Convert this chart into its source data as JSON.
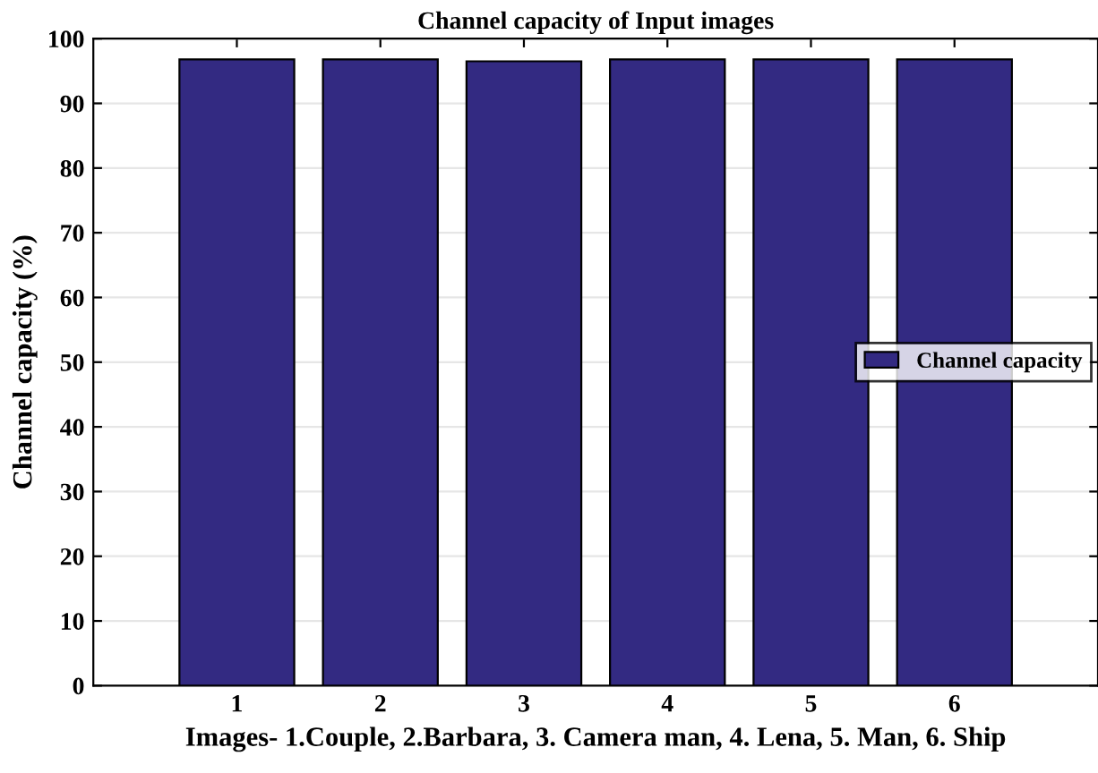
{
  "chart_data": {
    "type": "bar",
    "title": "Channel capacity of Input images",
    "xlabel": "Images- 1.Couple, 2.Barbara, 3. Camera man, 4. Lena, 5. Man, 6. Ship",
    "ylabel": "Channel capacity (%)",
    "categories": [
      "1",
      "2",
      "3",
      "4",
      "5",
      "6"
    ],
    "series": [
      {
        "name": "Channel capacity",
        "color": "#332a82",
        "values": [
          96.8,
          96.8,
          96.5,
          96.8,
          96.8,
          96.8
        ]
      }
    ],
    "ylim": [
      0,
      100
    ],
    "yticks": [
      0,
      10,
      20,
      30,
      40,
      50,
      60,
      70,
      80,
      90,
      100
    ],
    "grid": "y",
    "legend": "right"
  }
}
